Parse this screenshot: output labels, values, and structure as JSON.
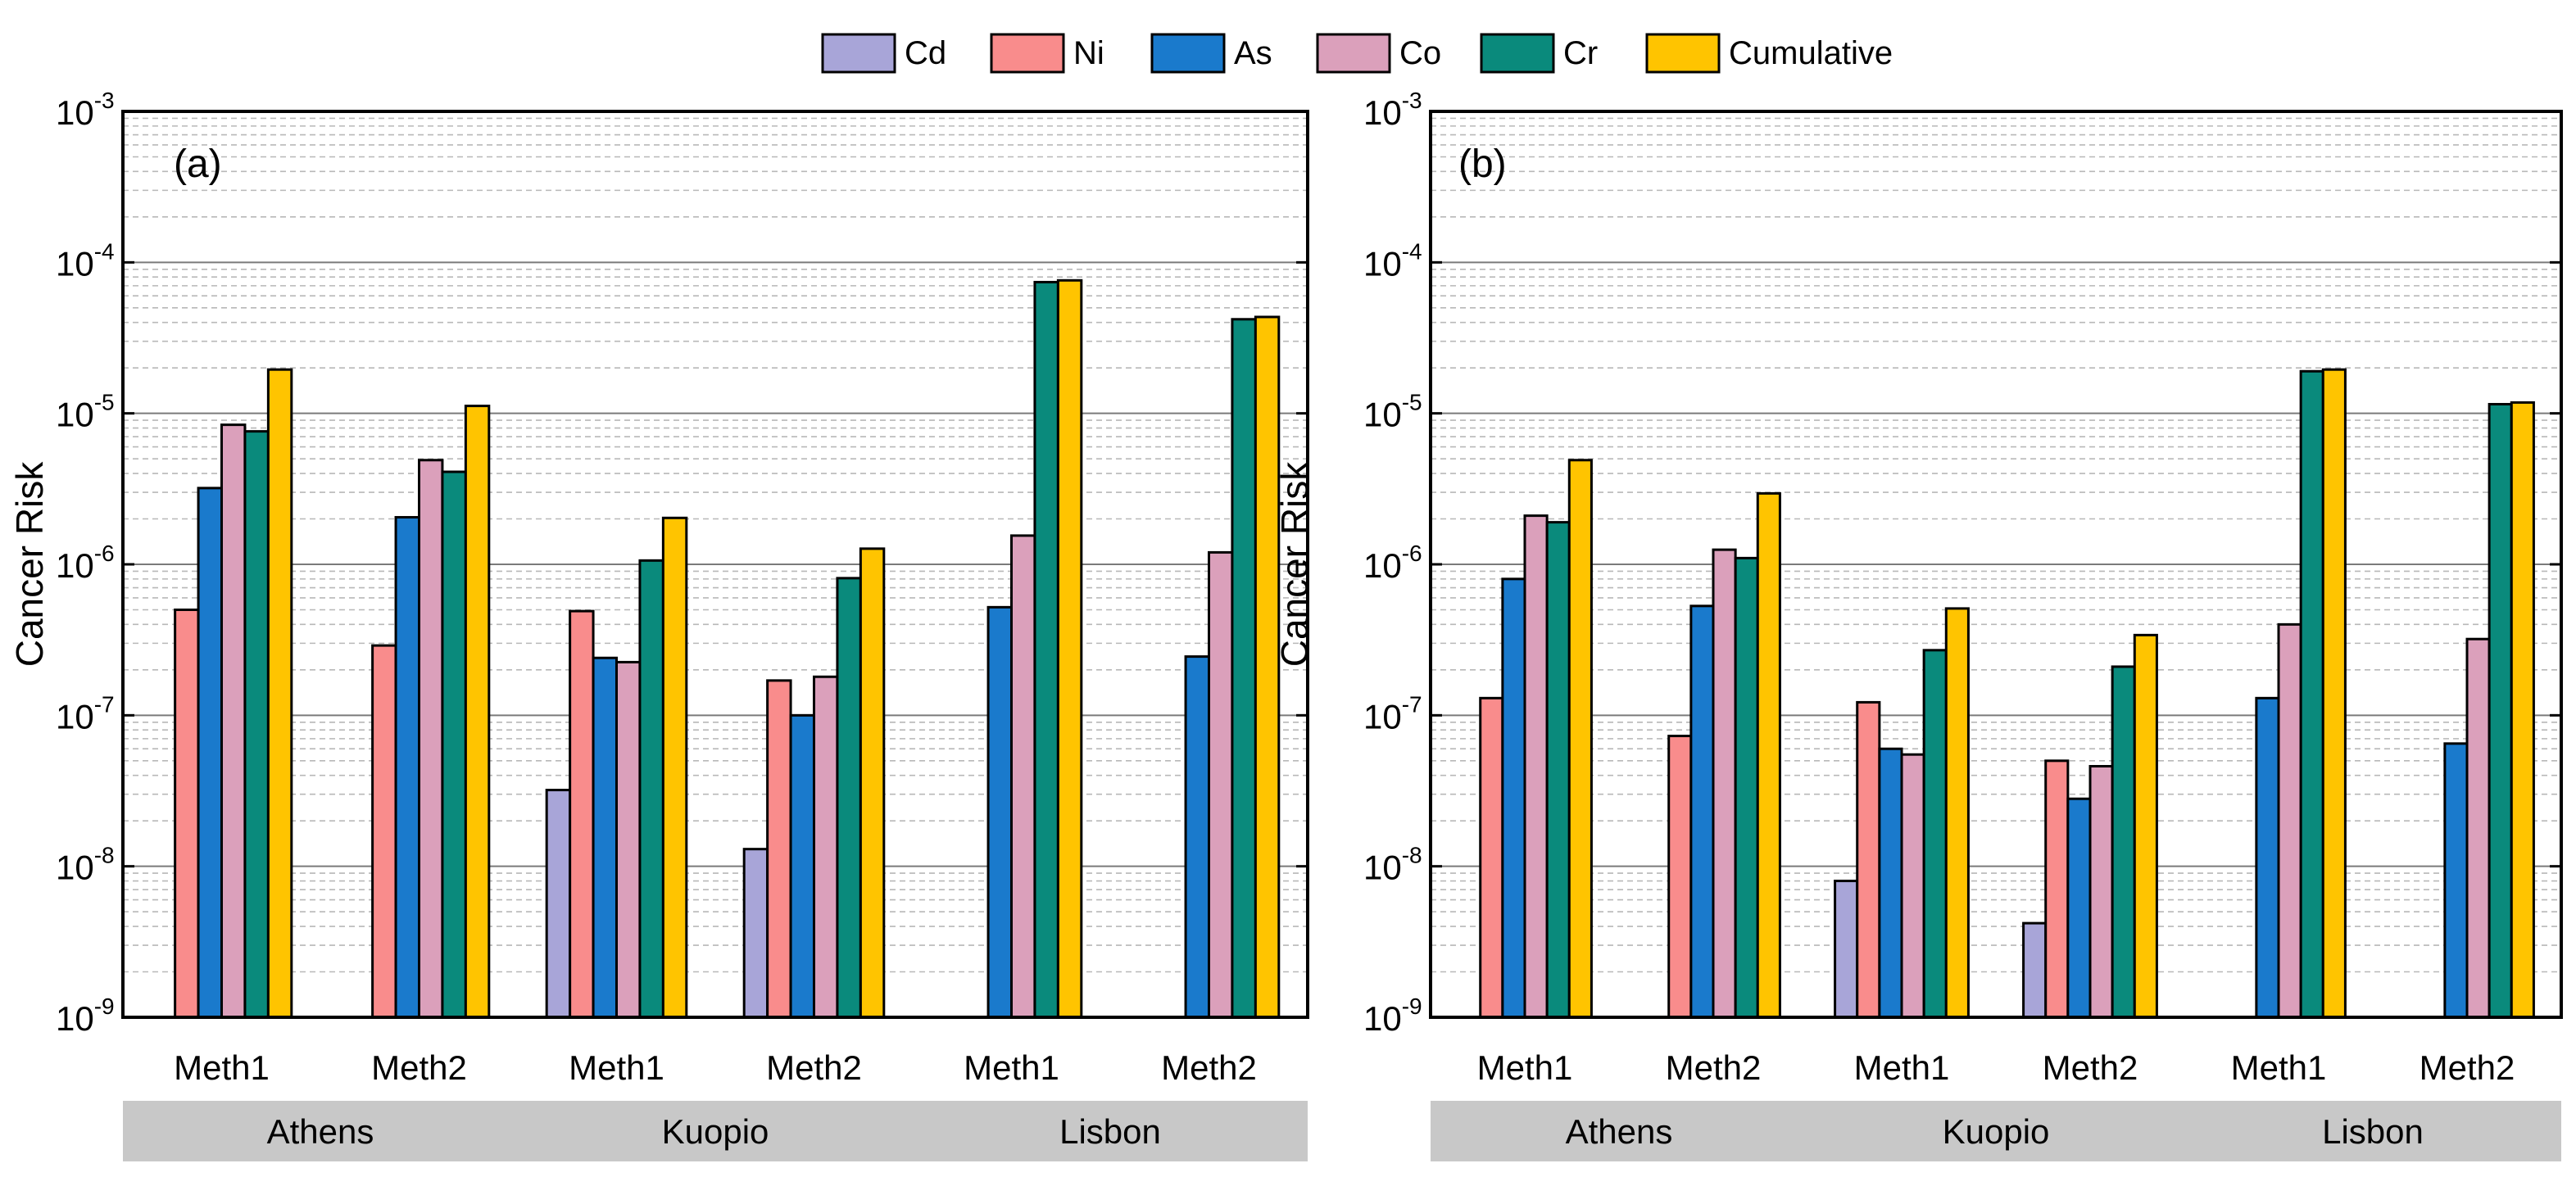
{
  "legend": [
    {
      "name": "Cd",
      "color": "#a8a5d8"
    },
    {
      "name": "Ni",
      "color": "#f98c8c"
    },
    {
      "name": "As",
      "color": "#1a7acc"
    },
    {
      "name": "Co",
      "color": "#dba0bb"
    },
    {
      "name": "Cr",
      "color": "#0a8a7c"
    },
    {
      "name": "Cumulative",
      "color": "#ffc400"
    }
  ],
  "chart_data": [
    {
      "type": "bar",
      "panel_label": "(a)",
      "ylabel": "Cancer Risk",
      "yscale": "log",
      "ylim": [
        1e-09,
        0.001
      ],
      "ytick_labels": [
        {
          "base": "10",
          "exp": "-9"
        },
        {
          "base": "10",
          "exp": "-8"
        },
        {
          "base": "10",
          "exp": "-7"
        },
        {
          "base": "10",
          "exp": "-6"
        },
        {
          "base": "10",
          "exp": "-5"
        },
        {
          "base": "10",
          "exp": "-4"
        },
        {
          "base": "10",
          "exp": "-3"
        }
      ],
      "categories": [
        "Meth1",
        "Meth2",
        "Meth1",
        "Meth2",
        "Meth1",
        "Meth2"
      ],
      "groups": [
        "Athens",
        "Kuopio",
        "Lisbon"
      ],
      "series": [
        {
          "name": "Cd",
          "values": [
            null,
            null,
            3.2e-08,
            1.3e-08,
            null,
            null
          ]
        },
        {
          "name": "Ni",
          "values": [
            5e-07,
            2.9e-07,
            4.9e-07,
            1.7e-07,
            null,
            null
          ]
        },
        {
          "name": "As",
          "values": [
            3.2e-06,
            2.05e-06,
            2.4e-07,
            1e-07,
            5.2e-07,
            2.45e-07
          ]
        },
        {
          "name": "Co",
          "values": [
            8.4e-06,
            4.9e-06,
            2.25e-07,
            1.8e-07,
            1.55e-06,
            1.2e-06
          ]
        },
        {
          "name": "Cr",
          "values": [
            7.6e-06,
            4.1e-06,
            1.06e-06,
            8.1e-07,
            7.4e-05,
            4.2e-05
          ]
        },
        {
          "name": "Cumulative",
          "values": [
            1.95e-05,
            1.12e-05,
            2.03e-06,
            1.27e-06,
            7.6e-05,
            4.35e-05
          ]
        }
      ]
    },
    {
      "type": "bar",
      "panel_label": "(b)",
      "ylabel": "Cancer Risk",
      "yscale": "log",
      "ylim": [
        1e-09,
        0.001
      ],
      "ytick_labels": [
        {
          "base": "10",
          "exp": "-9"
        },
        {
          "base": "10",
          "exp": "-8"
        },
        {
          "base": "10",
          "exp": "-7"
        },
        {
          "base": "10",
          "exp": "-6"
        },
        {
          "base": "10",
          "exp": "-5"
        },
        {
          "base": "10",
          "exp": "-4"
        },
        {
          "base": "10",
          "exp": "-3"
        }
      ],
      "categories": [
        "Meth1",
        "Meth2",
        "Meth1",
        "Meth2",
        "Meth1",
        "Meth2"
      ],
      "groups": [
        "Athens",
        "Kuopio",
        "Lisbon"
      ],
      "series": [
        {
          "name": "Cd",
          "values": [
            null,
            null,
            8e-09,
            4.2e-09,
            null,
            null
          ]
        },
        {
          "name": "Ni",
          "values": [
            1.3e-07,
            7.3e-08,
            1.22e-07,
            5e-08,
            null,
            null
          ]
        },
        {
          "name": "As",
          "values": [
            8e-07,
            5.3e-07,
            6e-08,
            2.8e-08,
            1.3e-07,
            6.5e-08
          ]
        },
        {
          "name": "Co",
          "values": [
            2.1e-06,
            1.25e-06,
            5.5e-08,
            4.6e-08,
            4e-07,
            3.2e-07
          ]
        },
        {
          "name": "Cr",
          "values": [
            1.9e-06,
            1.1e-06,
            2.7e-07,
            2.1e-07,
            1.9e-05,
            1.15e-05
          ]
        },
        {
          "name": "Cumulative",
          "values": [
            4.9e-06,
            2.95e-06,
            5.1e-07,
            3.4e-07,
            1.95e-05,
            1.18e-05
          ]
        }
      ]
    }
  ]
}
